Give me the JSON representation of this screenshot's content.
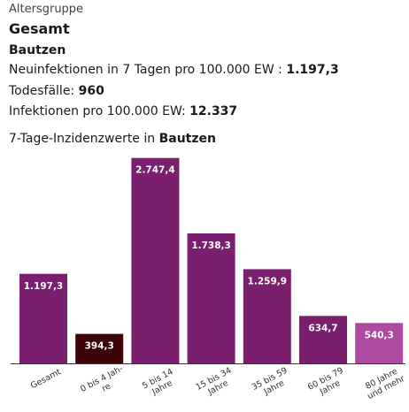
{
  "header": {
    "age_group_label": "Altersgruppe",
    "age_group_value": "Gesamt",
    "region": "Bautzen",
    "incidence_label": "Neuinfektionen in 7 Tagen pro 100.000 EW :",
    "incidence_value": "1.197,3",
    "deaths_label": "Todesfälle:",
    "deaths_value": "960",
    "infections_label": "Infektionen pro 100.000 EW:",
    "infections_value": "12.337",
    "chart_title_prefix": "7-Tage-Inzidenzwerte in",
    "chart_title_region": "Bautzen"
  },
  "chart_data": {
    "type": "bar",
    "categories": [
      [
        "Gesamt"
      ],
      [
        "0 bis 4 Jah-",
        "re"
      ],
      [
        "5 bis 14",
        "Jahre"
      ],
      [
        "15 bis 34",
        "Jahre"
      ],
      [
        "35 bis 59",
        "Jahre"
      ],
      [
        "60 bis 79",
        "Jahre"
      ],
      [
        "80 Jahre",
        "und mehr"
      ]
    ],
    "values": [
      1197.3,
      394.3,
      2747.4,
      1738.3,
      1259.9,
      634.7,
      540.3
    ],
    "value_labels": [
      "1.197,3",
      "394,3",
      "2.747,4",
      "1.738,3",
      "1.259,9",
      "634,7",
      "540,3"
    ],
    "colors": [
      "#7a1f6e",
      "#3d0508",
      "#7a1f6e",
      "#7a1f6e",
      "#7a1f6e",
      "#7a1f6e",
      "#ad4a9f"
    ],
    "ylim": [
      0,
      2850
    ],
    "grid": false,
    "legend": "none"
  }
}
